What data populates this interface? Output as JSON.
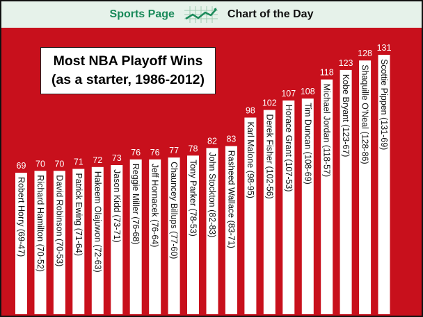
{
  "header": {
    "brand": "Sports Page",
    "logo_icon": "chart-trend-icon",
    "subtitle": "Chart of the Day",
    "brand_color": "#1a8a5a",
    "background_color": "#e6f2ea"
  },
  "colors": {
    "background": "#c8101c",
    "bar": "#ffffff",
    "value_text": "#ffffff",
    "label_text": "#111111"
  },
  "chart_data": {
    "type": "bar",
    "title_line1": "Most NBA Playoff Wins",
    "title_line2": "(as a starter, 1986-2012)",
    "xlabel": "",
    "ylabel": "",
    "ylim": [
      0,
      131
    ],
    "grid": false,
    "legend": "none",
    "categories": [
      "Robert Horry (69-47)",
      "Richard Hamilton (70-52)",
      "David Robinson (70-53)",
      "Patrick Ewing (71-64)",
      "Hakeem Olajuwon (72-63)",
      "Jason Kidd (73-71)",
      "Reggie Miller (76-68)",
      "Jeff Hornacek (76-64)",
      "Chauncey Billups (77-60)",
      "Tony Parker (78-53)",
      "John Stockton (82-83)",
      "Rasheed Wallace (83-71)",
      "Karl Malone (98-95)",
      "Derek Fisher (102-56)",
      "Horace Grant (107-53)",
      "Tim Duncan (108-69)",
      "Michael Jordan (118-57)",
      "Kobe Bryant (123-67)",
      "Shaquille O'Neal (128-86)",
      "Scottie Pippen (131-69)"
    ],
    "values": [
      69,
      70,
      70,
      71,
      72,
      73,
      76,
      76,
      77,
      78,
      82,
      83,
      98,
      102,
      107,
      108,
      118,
      123,
      128,
      131
    ]
  }
}
